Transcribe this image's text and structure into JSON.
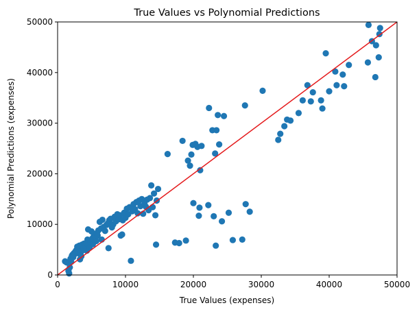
{
  "chart_data": {
    "type": "scatter",
    "title": "True Values vs Polynomial Predictions",
    "xlabel": "True Values (expenses)",
    "ylabel": "Polynomial Predictions (expenses)",
    "xlim": [
      0,
      50000
    ],
    "ylim": [
      0,
      50000
    ],
    "xticks": [
      0,
      10000,
      20000,
      30000,
      40000,
      50000
    ],
    "yticks": [
      0,
      10000,
      20000,
      30000,
      40000,
      50000
    ],
    "xtick_labels": [
      "0",
      "10000",
      "20000",
      "30000",
      "40000",
      "50000"
    ],
    "ytick_labels": [
      "0",
      "10000",
      "20000",
      "30000",
      "40000",
      "50000"
    ],
    "grid": false,
    "point_color": "#1f77b4",
    "reference_line": {
      "from": [
        0,
        0
      ],
      "to": [
        50000,
        50000
      ],
      "color": "#e41a1c"
    },
    "points": [
      [
        1100,
        2700
      ],
      [
        1300,
        2500
      ],
      [
        1500,
        2400
      ],
      [
        1600,
        800
      ],
      [
        1700,
        300
      ],
      [
        1800,
        1500
      ],
      [
        1900,
        3200
      ],
      [
        2000,
        2600
      ],
      [
        2100,
        3800
      ],
      [
        2200,
        4000
      ],
      [
        2300,
        3500
      ],
      [
        2400,
        4300
      ],
      [
        2500,
        4100
      ],
      [
        2600,
        4600
      ],
      [
        2700,
        4800
      ],
      [
        2800,
        5000
      ],
      [
        2900,
        5600
      ],
      [
        3000,
        4300
      ],
      [
        3100,
        5200
      ],
      [
        3200,
        5800
      ],
      [
        3300,
        3100
      ],
      [
        3400,
        4400
      ],
      [
        3500,
        3700
      ],
      [
        3600,
        6000
      ],
      [
        3700,
        4900
      ],
      [
        3800,
        5300
      ],
      [
        3900,
        6200
      ],
      [
        4000,
        5000
      ],
      [
        4100,
        5700
      ],
      [
        4200,
        6300
      ],
      [
        4300,
        4800
      ],
      [
        4400,
        7000
      ],
      [
        4500,
        9000
      ],
      [
        4600,
        6000
      ],
      [
        4700,
        5400
      ],
      [
        4800,
        6800
      ],
      [
        4900,
        6400
      ],
      [
        5000,
        8600
      ],
      [
        5100,
        7200
      ],
      [
        5200,
        6100
      ],
      [
        5300,
        7600
      ],
      [
        5400,
        6900
      ],
      [
        5500,
        8000
      ],
      [
        5600,
        7400
      ],
      [
        5700,
        6700
      ],
      [
        5800,
        8300
      ],
      [
        5900,
        7800
      ],
      [
        6000,
        8800
      ],
      [
        6200,
        10500
      ],
      [
        6400,
        9200
      ],
      [
        6500,
        7000
      ],
      [
        6600,
        10900
      ],
      [
        6800,
        9500
      ],
      [
        7000,
        8700
      ],
      [
        7200,
        9900
      ],
      [
        7400,
        10200
      ],
      [
        7500,
        5300
      ],
      [
        7600,
        10800
      ],
      [
        7800,
        11100
      ],
      [
        8000,
        9400
      ],
      [
        8200,
        10000
      ],
      [
        8400,
        11500
      ],
      [
        8600,
        10600
      ],
      [
        8800,
        12000
      ],
      [
        9000,
        11000
      ],
      [
        9200,
        11800
      ],
      [
        9300,
        7800
      ],
      [
        9500,
        8000
      ],
      [
        9600,
        10800
      ],
      [
        9800,
        12300
      ],
      [
        10000,
        11300
      ],
      [
        10200,
        13100
      ],
      [
        10400,
        12000
      ],
      [
        10600,
        13400
      ],
      [
        10800,
        2800
      ],
      [
        11000,
        12600
      ],
      [
        11200,
        14000
      ],
      [
        11400,
        13000
      ],
      [
        11600,
        14400
      ],
      [
        11800,
        12200
      ],
      [
        12000,
        14700
      ],
      [
        12200,
        13600
      ],
      [
        12400,
        15000
      ],
      [
        12600,
        12100
      ],
      [
        12800,
        14100
      ],
      [
        13000,
        13500
      ],
      [
        13200,
        14900
      ],
      [
        13400,
        12800
      ],
      [
        13600,
        15200
      ],
      [
        13800,
        17700
      ],
      [
        14000,
        13400
      ],
      [
        14200,
        16100
      ],
      [
        14400,
        11800
      ],
      [
        14500,
        6000
      ],
      [
        14600,
        14700
      ],
      [
        14800,
        17000
      ],
      [
        16200,
        23900
      ],
      [
        17300,
        6400
      ],
      [
        17900,
        6300
      ],
      [
        18400,
        26500
      ],
      [
        18900,
        6800
      ],
      [
        19200,
        22600
      ],
      [
        19500,
        21600
      ],
      [
        19700,
        23800
      ],
      [
        19900,
        25700
      ],
      [
        20000,
        14200
      ],
      [
        20300,
        25900
      ],
      [
        20600,
        25300
      ],
      [
        20800,
        11700
      ],
      [
        20900,
        13300
      ],
      [
        21000,
        20700
      ],
      [
        21200,
        25500
      ],
      [
        22300,
        33000
      ],
      [
        22200,
        13800
      ],
      [
        22800,
        28600
      ],
      [
        23000,
        11600
      ],
      [
        23200,
        24000
      ],
      [
        23300,
        5800
      ],
      [
        23400,
        28600
      ],
      [
        23600,
        31600
      ],
      [
        23800,
        25800
      ],
      [
        24200,
        10600
      ],
      [
        24500,
        31400
      ],
      [
        25200,
        12300
      ],
      [
        25800,
        6900
      ],
      [
        27200,
        7000
      ],
      [
        27600,
        33500
      ],
      [
        27700,
        14000
      ],
      [
        28300,
        12500
      ],
      [
        30200,
        36400
      ],
      [
        32500,
        26700
      ],
      [
        32800,
        27900
      ],
      [
        33400,
        29400
      ],
      [
        33800,
        30700
      ],
      [
        34300,
        30500
      ],
      [
        35500,
        32000
      ],
      [
        36100,
        34500
      ],
      [
        36800,
        37500
      ],
      [
        37300,
        34300
      ],
      [
        37600,
        36100
      ],
      [
        38800,
        34500
      ],
      [
        39000,
        32900
      ],
      [
        39500,
        43800
      ],
      [
        40000,
        36300
      ],
      [
        40900,
        40200
      ],
      [
        41100,
        37500
      ],
      [
        42000,
        39600
      ],
      [
        42200,
        37300
      ],
      [
        42900,
        41500
      ],
      [
        45700,
        42000
      ],
      [
        45800,
        49400
      ],
      [
        46300,
        46200
      ],
      [
        46800,
        39100
      ],
      [
        46900,
        45400
      ],
      [
        47300,
        43000
      ],
      [
        47400,
        47600
      ],
      [
        47500,
        48800
      ]
    ]
  }
}
